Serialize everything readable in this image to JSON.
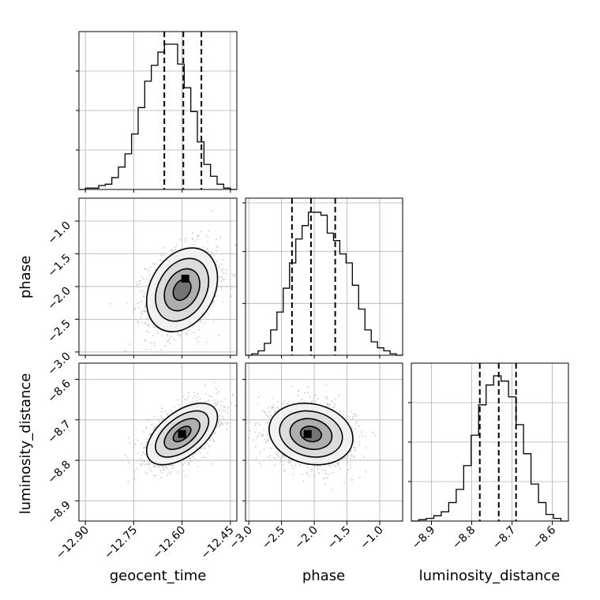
{
  "chart_data": {
    "type": "corner",
    "parameters": [
      "geocent_time",
      "phase",
      "luminosity_distance"
    ],
    "axis_labels": {
      "geocent_time": "geocent_time",
      "phase": "phase",
      "luminosity_distance": "luminosity_distance"
    },
    "ticks": {
      "geocent_time": {
        "values": [
          -12.9,
          -12.75,
          -12.6,
          -12.45
        ],
        "labels": [
          "−12.90",
          "−12.75",
          "−12.60",
          "−12.45"
        ]
      },
      "phase": {
        "values": [
          -3.0,
          -2.5,
          -2.0,
          -1.5,
          -1.0
        ],
        "labels": [
          "−3.0",
          "−2.5",
          "−2.0",
          "−1.5",
          "−1.0"
        ]
      },
      "luminosity_distance": {
        "values": [
          -8.9,
          -8.8,
          -8.7,
          -8.6
        ],
        "labels": [
          "−8.9",
          "−8.8",
          "−8.7",
          "−8.6"
        ]
      }
    },
    "ranges": {
      "geocent_time": [
        -12.92,
        -12.43
      ],
      "phase": [
        -3.05,
        -0.65
      ],
      "luminosity_distance": [
        -8.95,
        -8.56
      ]
    },
    "grid": true,
    "histograms": {
      "geocent_time": {
        "bins": [
          -12.92,
          -12.43
        ],
        "counts": [
          0,
          1,
          1,
          3,
          4,
          9,
          17,
          27,
          42,
          62,
          82,
          94,
          104,
          110,
          110,
          95,
          77,
          59,
          36,
          19,
          10,
          4,
          1,
          0
        ],
        "quantiles": [
          -12.655,
          -12.596,
          -12.54
        ],
        "scale_max": 110,
        "ytick_fractions": [
          0.25,
          0.5,
          0.75
        ]
      },
      "phase": {
        "bins": [
          -3.05,
          -0.65
        ],
        "counts": [
          0,
          1,
          3,
          8,
          17,
          29,
          45,
          62,
          78,
          87,
          96,
          96,
          94,
          82,
          77,
          68,
          62,
          47,
          31,
          17,
          9,
          5,
          3,
          1,
          0
        ],
        "quantiles": [
          -2.34,
          -2.05,
          -1.68
        ],
        "scale_max": 97,
        "ytick_fractions": [
          0.33,
          0.66,
          0.97
        ]
      },
      "luminosity_distance": {
        "bins": [
          -8.95,
          -8.56
        ],
        "counts": [
          0,
          1,
          2,
          4,
          7,
          14,
          24,
          42,
          65,
          88,
          103,
          110,
          106,
          94,
          73,
          51,
          28,
          14,
          5,
          2,
          0
        ],
        "quantiles": [
          -8.78,
          -8.733,
          -8.69
        ],
        "scale_max": 110,
        "ytick_fractions": [
          0.25,
          0.5,
          0.75
        ]
      }
    },
    "pairs": [
      {
        "x": "geocent_time",
        "y": "phase",
        "center": [
          -12.6,
          -2.05
        ],
        "sigma": [
          0.055,
          0.32
        ],
        "rho": 0.28,
        "peak": [
          -12.59,
          -1.88
        ],
        "n_points": 1600
      },
      {
        "x": "geocent_time",
        "y": "luminosity_distance",
        "center": [
          -12.6,
          -8.735
        ],
        "sigma": [
          0.055,
          0.038
        ],
        "rho": 0.55,
        "peak": [
          -12.6,
          -8.735
        ],
        "n_points": 1600
      },
      {
        "x": "phase",
        "y": "luminosity_distance",
        "center": [
          -2.05,
          -8.735
        ],
        "sigma": [
          0.32,
          0.038
        ],
        "rho": -0.15,
        "peak": [
          -2.1,
          -8.735
        ],
        "n_points": 1600
      }
    ],
    "contour_levels_sigma": [
      0.5,
      1.0,
      1.5,
      2.0
    ],
    "colors": {
      "hist": "#000000",
      "quantile": "#000000",
      "scatter": "#c8c8c8",
      "grid": "#b0b0b0",
      "contour": "#000000"
    }
  }
}
